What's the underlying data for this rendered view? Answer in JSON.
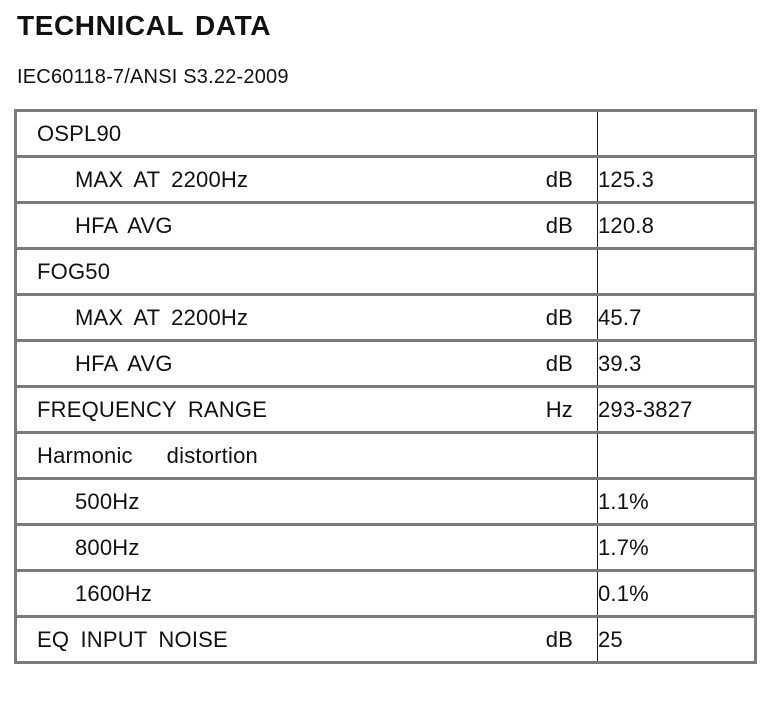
{
  "page": {
    "title": "TECHNICAL DATA",
    "subtitle": "IEC60118-7/ANSI S3.22-2009"
  },
  "table": {
    "rows": [
      {
        "label": "OSPL90",
        "unit": "",
        "value": "",
        "indent": false
      },
      {
        "label": "MAX AT 2200Hz",
        "unit": "dB",
        "value": "125.3",
        "indent": true
      },
      {
        "label": "HFA AVG",
        "unit": "dB",
        "value": "120.8",
        "indent": true
      },
      {
        "label": "FOG50",
        "unit": "",
        "value": "",
        "indent": false
      },
      {
        "label": "MAX AT 2200Hz",
        "unit": "dB",
        "value": "45.7",
        "indent": true
      },
      {
        "label": "HFA AVG",
        "unit": "dB",
        "value": "39.3",
        "indent": true
      },
      {
        "label": "FREQUENCY RANGE",
        "unit": "Hz",
        "value": "293-3827",
        "indent": false
      },
      {
        "label": "Harmonic   distortion",
        "unit": "",
        "value": "",
        "indent": false
      },
      {
        "label": "500Hz",
        "unit": "",
        "value": "1.1%",
        "indent": true
      },
      {
        "label": "800Hz",
        "unit": "",
        "value": "1.7%",
        "indent": true
      },
      {
        "label": "1600Hz",
        "unit": "",
        "value": "0.1%",
        "indent": true
      },
      {
        "label": "EQ INPUT NOISE",
        "unit": "dB",
        "value": "25",
        "indent": false
      }
    ]
  },
  "colors": {
    "border_gray": "#7a7a7a",
    "divider_black": "#1b1b1b",
    "text": "#111111",
    "background": "#ffffff"
  }
}
